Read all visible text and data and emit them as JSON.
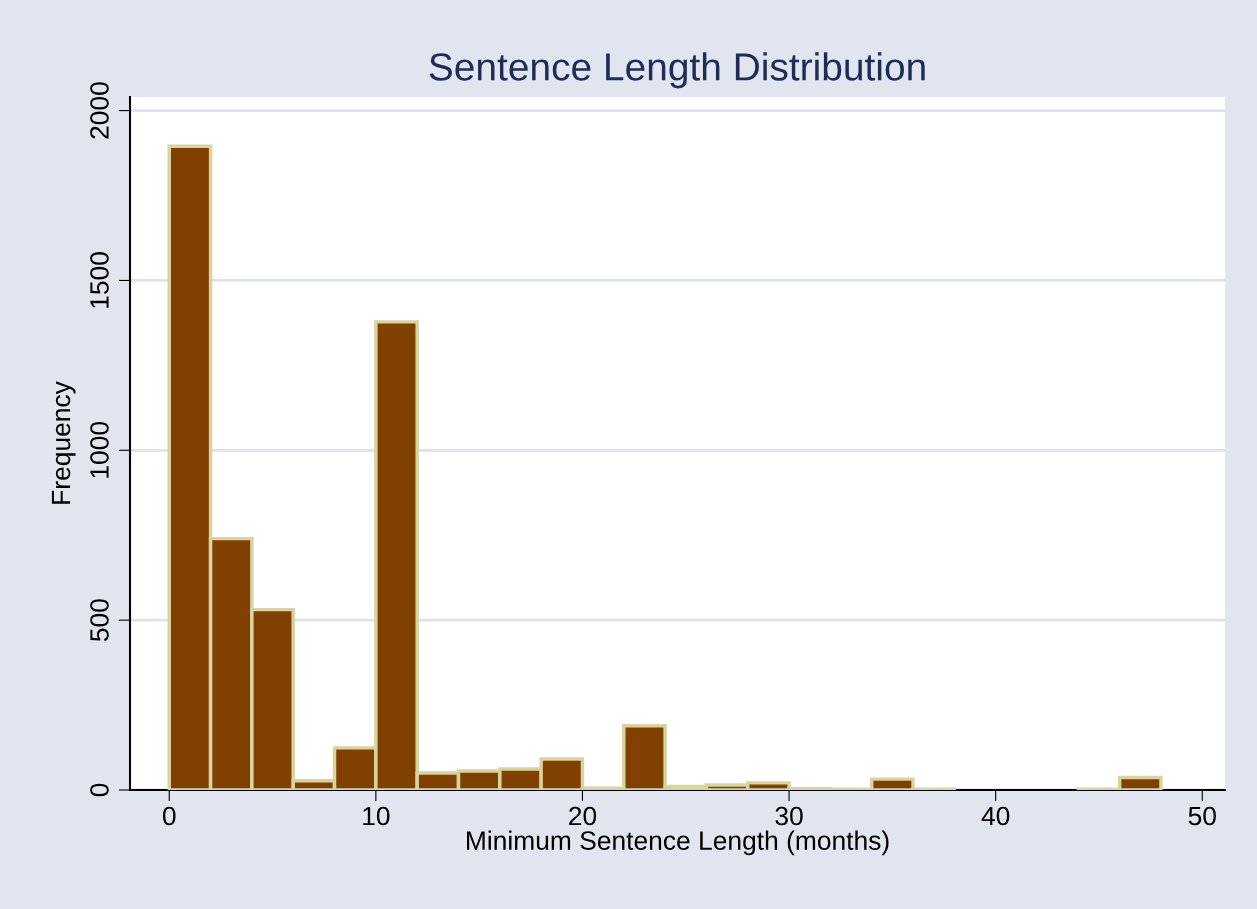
{
  "chart_data": {
    "type": "histogram",
    "title": "Sentence Length Distribution",
    "xlabel": "Minimum Sentence Length (months)",
    "ylabel": "Frequency",
    "bins": [
      0,
      2,
      4,
      6,
      8,
      10,
      12,
      14,
      16,
      18,
      20,
      22,
      24,
      26,
      28,
      30,
      32,
      34,
      36,
      38,
      40,
      42,
      44,
      46,
      48
    ],
    "values": [
      1895,
      740,
      531,
      27,
      124,
      1378,
      50,
      56,
      62,
      91,
      5,
      189,
      10,
      15,
      21,
      4,
      2,
      32,
      2,
      0,
      0,
      0,
      2,
      37
    ],
    "color": "#804000",
    "xlim": [
      -1.9,
      51.1
    ],
    "ylim": [
      0,
      2040
    ],
    "xticks": [
      0,
      10,
      20,
      30,
      40,
      50
    ],
    "yticks": [
      0,
      500,
      1000,
      1500,
      2000
    ],
    "grid": "y"
  }
}
